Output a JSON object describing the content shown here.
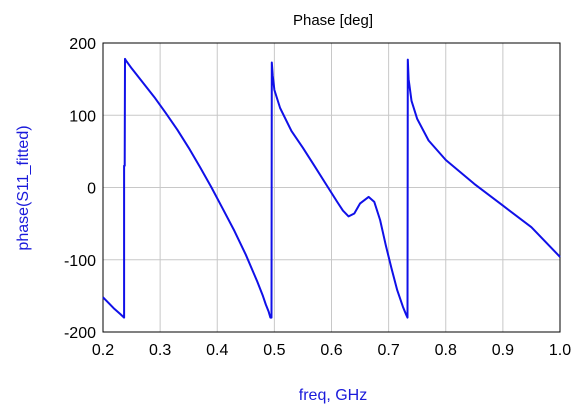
{
  "chart_data": {
    "type": "line",
    "title": "Phase [deg]",
    "xlabel": "freq, GHz",
    "ylabel": "phase(S11_fitted)",
    "xlim": [
      0.2,
      1.0
    ],
    "ylim": [
      -200,
      200
    ],
    "grid": true,
    "x_ticks": [
      "0.2",
      "0.3",
      "0.4",
      "0.5",
      "0.6",
      "0.7",
      "0.8",
      "0.9",
      "1.0"
    ],
    "y_ticks": [
      "-200",
      "-100",
      "0",
      "100",
      "200"
    ],
    "colors": {
      "series": "#1010e8",
      "axis_label": "#1a1adb",
      "grid": "#c8c8c8",
      "frame": "#000000"
    },
    "series": [
      {
        "x": [
          0.2,
          0.21,
          0.22,
          0.23,
          0.237,
          0.237,
          0.238,
          0.2385,
          0.24,
          0.25,
          0.27,
          0.29,
          0.31,
          0.33,
          0.35,
          0.37,
          0.39,
          0.41,
          0.43,
          0.45,
          0.47,
          0.48,
          0.485,
          0.49,
          0.493,
          0.495,
          0.4955,
          0.497,
          0.5,
          0.51,
          0.53,
          0.55,
          0.57,
          0.59,
          0.61,
          0.62,
          0.63,
          0.64,
          0.65,
          0.665,
          0.675,
          0.685,
          0.695,
          0.705,
          0.715,
          0.725,
          0.73,
          0.733,
          0.7335,
          0.735,
          0.74,
          0.75,
          0.77,
          0.8,
          0.85,
          0.9,
          0.95,
          1.0
        ],
        "y": [
          -152,
          -160,
          -168,
          -175,
          -180,
          30,
          30,
          178,
          176,
          165,
          145,
          125,
          103,
          80,
          55,
          28,
          0,
          -30,
          -60,
          -93,
          -130,
          -150,
          -162,
          -172,
          -180,
          -180,
          173,
          155,
          135,
          110,
          78,
          55,
          30,
          5,
          -20,
          -32,
          -40,
          -36,
          -22,
          -13,
          -20,
          -45,
          -80,
          -112,
          -142,
          -165,
          -175,
          -180,
          177,
          150,
          120,
          95,
          65,
          38,
          5,
          -25,
          -55,
          -96
        ]
      }
    ]
  }
}
